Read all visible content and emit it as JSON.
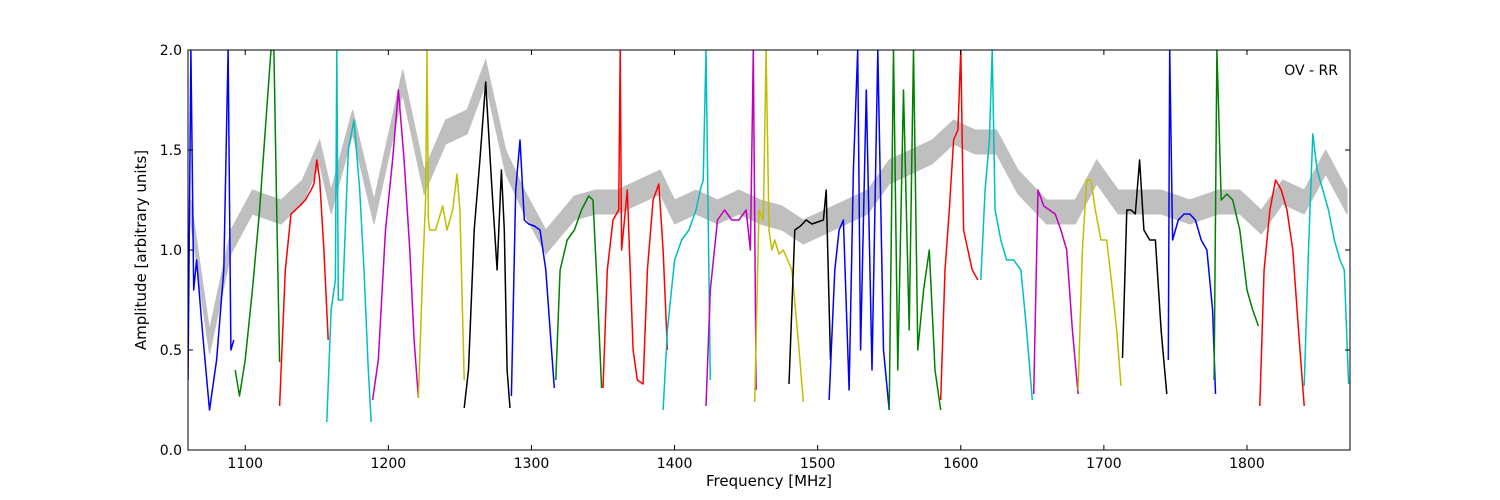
{
  "chart_data": {
    "type": "line",
    "annotation": "OV - RR",
    "xlabel": "Frequency [MHz]",
    "ylabel": "Amplitude [arbitrary units]",
    "xlim": [
      1060,
      1872
    ],
    "ylim": [
      0,
      2.0
    ],
    "x_ticks": [
      1100,
      1200,
      1300,
      1400,
      1500,
      1600,
      1700,
      1800
    ],
    "y_ticks": [
      0.0,
      0.5,
      1.0,
      1.5,
      2.0
    ],
    "x_tick_labels": [
      "1100",
      "1200",
      "1300",
      "1400",
      "1500",
      "1600",
      "1700",
      "1800"
    ],
    "y_tick_labels": [
      "0.0",
      "0.5",
      "1.0",
      "1.5",
      "2.0"
    ],
    "grid": false,
    "legend": "none",
    "colors": {
      "envelope": "#bfbfbf",
      "blue": "#0000ff",
      "green": "#008000",
      "red": "#ff0000",
      "cyan": "#00bfbf",
      "magenta": "#bf00bf",
      "yellow": "#bfbf00",
      "black": "#000000"
    },
    "envelope": {
      "x": [
        1062,
        1075,
        1090,
        1105,
        1125,
        1140,
        1152,
        1160,
        1175,
        1190,
        1210,
        1225,
        1240,
        1255,
        1268,
        1282,
        1295,
        1310,
        1330,
        1345,
        1360,
        1375,
        1390,
        1400,
        1415,
        1430,
        1445,
        1460,
        1475,
        1490,
        1505,
        1520,
        1535,
        1550,
        1565,
        1580,
        1595,
        1610,
        1625,
        1640,
        1660,
        1680,
        1695,
        1710,
        1725,
        1740,
        1760,
        1780,
        1795,
        1810,
        1825,
        1840,
        1855,
        1870
      ],
      "y": [
        1.25,
        0.6,
        1.1,
        1.3,
        1.25,
        1.35,
        1.55,
        1.3,
        1.7,
        1.25,
        1.9,
        1.4,
        1.65,
        1.7,
        1.95,
        1.5,
        1.3,
        1.1,
        1.27,
        1.3,
        1.3,
        1.35,
        1.4,
        1.25,
        1.3,
        1.25,
        1.3,
        1.25,
        1.22,
        1.15,
        1.2,
        1.25,
        1.3,
        1.45,
        1.5,
        1.55,
        1.65,
        1.6,
        1.6,
        1.4,
        1.25,
        1.25,
        1.45,
        1.3,
        1.3,
        1.3,
        1.25,
        1.3,
        1.3,
        1.2,
        1.35,
        1.3,
        1.5,
        1.3
      ]
    },
    "series": [
      {
        "color": "blue",
        "x": [
          1060,
          1062,
          1064,
          1066,
          1070,
          1075,
          1080,
          1085,
          1088,
          1090,
          1092
        ],
        "y": [
          0.35,
          2.0,
          0.8,
          0.95,
          0.6,
          0.2,
          0.45,
          0.9,
          2.0,
          0.5,
          0.55
        ]
      },
      {
        "color": "green",
        "x": [
          1093,
          1096,
          1100,
          1105,
          1110,
          1115,
          1118,
          1120,
          1122,
          1124
        ],
        "y": [
          0.4,
          0.27,
          0.45,
          0.8,
          1.2,
          1.7,
          2.0,
          2.0,
          1.2,
          0.44
        ]
      },
      {
        "color": "red",
        "x": [
          1124,
          1128,
          1132,
          1138,
          1142,
          1146,
          1148,
          1150,
          1152,
          1155,
          1158
        ],
        "y": [
          0.22,
          0.9,
          1.18,
          1.22,
          1.25,
          1.3,
          1.33,
          1.45,
          1.35,
          1.0,
          0.55
        ]
      },
      {
        "color": "cyan",
        "x": [
          1157,
          1160,
          1163,
          1164,
          1165,
          1168,
          1172,
          1176,
          1180,
          1183,
          1186,
          1188
        ],
        "y": [
          0.14,
          0.7,
          0.85,
          2.0,
          0.75,
          0.75,
          1.5,
          1.65,
          1.3,
          0.9,
          0.4,
          0.14
        ]
      },
      {
        "color": "magenta",
        "x": [
          1189,
          1193,
          1198,
          1203,
          1207,
          1211,
          1215,
          1218,
          1221
        ],
        "y": [
          0.25,
          0.45,
          1.1,
          1.45,
          1.8,
          1.45,
          1.0,
          0.55,
          0.26
        ]
      },
      {
        "color": "yellow",
        "x": [
          1221,
          1224,
          1226,
          1227,
          1228,
          1229,
          1233,
          1238,
          1241,
          1245,
          1248,
          1250,
          1253
        ],
        "y": [
          0.26,
          0.9,
          1.25,
          2.0,
          1.15,
          1.1,
          1.1,
          1.22,
          1.1,
          1.2,
          1.38,
          1.2,
          0.35
        ]
      },
      {
        "color": "black",
        "x": [
          1253,
          1256,
          1260,
          1264,
          1268,
          1272,
          1276,
          1279,
          1281,
          1283,
          1285
        ],
        "y": [
          0.21,
          0.4,
          1.1,
          1.45,
          1.84,
          1.35,
          0.9,
          1.4,
          1.1,
          0.4,
          0.21
        ]
      },
      {
        "color": "blue",
        "x": [
          1286,
          1289,
          1292,
          1295,
          1298,
          1302,
          1306,
          1310,
          1313,
          1316
        ],
        "y": [
          0.27,
          1.3,
          1.55,
          1.15,
          1.13,
          1.12,
          1.1,
          0.9,
          0.6,
          0.31
        ]
      },
      {
        "color": "green",
        "x": [
          1317,
          1320,
          1325,
          1330,
          1335,
          1340,
          1343,
          1346,
          1349
        ],
        "y": [
          0.35,
          0.9,
          1.05,
          1.1,
          1.2,
          1.27,
          1.25,
          0.8,
          0.31
        ]
      },
      {
        "color": "red",
        "x": [
          1350,
          1353,
          1357,
          1361,
          1362,
          1363,
          1367,
          1371,
          1374,
          1378,
          1381,
          1385,
          1389,
          1392,
          1395
        ],
        "y": [
          0.31,
          0.9,
          1.15,
          1.2,
          2.0,
          1.0,
          1.3,
          0.5,
          0.35,
          0.33,
          0.9,
          1.25,
          1.33,
          1.0,
          0.5
        ]
      },
      {
        "color": "cyan",
        "x": [
          1392,
          1395,
          1400,
          1405,
          1410,
          1415,
          1418,
          1420,
          1422,
          1425
        ],
        "y": [
          0.2,
          0.6,
          0.95,
          1.05,
          1.1,
          1.2,
          1.3,
          1.35,
          2.0,
          0.35
        ]
      },
      {
        "color": "magenta",
        "x": [
          1422,
          1425,
          1430,
          1435,
          1440,
          1445,
          1450,
          1453,
          1455,
          1457
        ],
        "y": [
          0.22,
          0.8,
          1.15,
          1.2,
          1.15,
          1.15,
          1.2,
          1.0,
          2.0,
          0.3
        ]
      },
      {
        "color": "yellow",
        "x": [
          1456,
          1459,
          1462,
          1464,
          1466,
          1468,
          1470,
          1473,
          1476,
          1479,
          1482,
          1487,
          1490
        ],
        "y": [
          0.24,
          1.2,
          1.15,
          2.0,
          1.1,
          1.0,
          1.05,
          0.98,
          1.0,
          0.95,
          0.9,
          0.5,
          0.24
        ]
      },
      {
        "color": "black",
        "x": [
          1480,
          1484,
          1488,
          1492,
          1496,
          1500,
          1504,
          1506,
          1509
        ],
        "y": [
          0.33,
          1.1,
          1.12,
          1.15,
          1.13,
          1.14,
          1.15,
          1.3,
          0.45
        ]
      },
      {
        "color": "blue",
        "x": [
          1508,
          1512,
          1515,
          1518,
          1522,
          1525,
          1528,
          1530,
          1534,
          1538,
          1542,
          1546,
          1550
        ],
        "y": [
          0.25,
          0.9,
          1.1,
          1.15,
          0.3,
          1.4,
          2.0,
          0.5,
          1.8,
          0.4,
          2.0,
          0.5,
          0.2
        ]
      },
      {
        "color": "green",
        "x": [
          1550,
          1553,
          1556,
          1560,
          1564,
          1567,
          1570,
          1574,
          1578,
          1582,
          1586
        ],
        "y": [
          0.2,
          2.0,
          0.4,
          1.8,
          0.6,
          2.0,
          0.5,
          0.8,
          1.0,
          0.4,
          0.2
        ]
      },
      {
        "color": "red",
        "x": [
          1586,
          1589,
          1592,
          1595,
          1598,
          1600,
          1602,
          1605,
          1608,
          1612
        ],
        "y": [
          0.25,
          0.9,
          1.2,
          1.55,
          1.6,
          2.0,
          1.1,
          1.0,
          0.9,
          0.85
        ]
      },
      {
        "color": "cyan",
        "x": [
          1614,
          1617,
          1620,
          1622,
          1624,
          1628,
          1632,
          1637,
          1642,
          1646,
          1650
        ],
        "y": [
          0.85,
          1.3,
          1.55,
          2.0,
          1.2,
          1.05,
          0.95,
          0.95,
          0.9,
          0.6,
          0.25
        ]
      },
      {
        "color": "magenta",
        "x": [
          1651,
          1654,
          1658,
          1662,
          1666,
          1670,
          1674,
          1678,
          1682
        ],
        "y": [
          0.28,
          1.3,
          1.22,
          1.2,
          1.18,
          1.1,
          1.0,
          0.6,
          0.28
        ]
      },
      {
        "color": "yellow",
        "x": [
          1682,
          1685,
          1688,
          1691,
          1694,
          1698,
          1702,
          1706,
          1709,
          1712
        ],
        "y": [
          0.3,
          1.0,
          1.35,
          1.35,
          1.2,
          1.05,
          1.05,
          0.8,
          0.6,
          0.32
        ]
      },
      {
        "color": "black",
        "x": [
          1713,
          1716,
          1719,
          1722,
          1725,
          1728,
          1732,
          1736,
          1740,
          1744
        ],
        "y": [
          0.46,
          1.2,
          1.2,
          1.18,
          1.45,
          1.1,
          1.05,
          1.05,
          0.6,
          0.28
        ]
      },
      {
        "color": "blue",
        "x": [
          1745,
          1746,
          1748,
          1752,
          1756,
          1760,
          1764,
          1768,
          1772,
          1776,
          1778
        ],
        "y": [
          0.45,
          2.0,
          1.05,
          1.15,
          1.18,
          1.18,
          1.15,
          1.05,
          1.0,
          0.7,
          0.28
        ]
      },
      {
        "color": "green",
        "x": [
          1777,
          1779,
          1782,
          1786,
          1790,
          1795,
          1800,
          1804,
          1808
        ],
        "y": [
          0.35,
          2.0,
          1.25,
          1.28,
          1.25,
          1.1,
          0.8,
          0.7,
          0.62
        ]
      },
      {
        "color": "red",
        "x": [
          1809,
          1812,
          1816,
          1820,
          1824,
          1828,
          1832,
          1836,
          1840
        ],
        "y": [
          0.22,
          0.9,
          1.2,
          1.35,
          1.3,
          1.2,
          1.0,
          0.6,
          0.22
        ]
      },
      {
        "color": "cyan",
        "x": [
          1840,
          1843,
          1846,
          1849,
          1853,
          1857,
          1861,
          1865,
          1868,
          1871
        ],
        "y": [
          0.32,
          1.0,
          1.58,
          1.4,
          1.3,
          1.2,
          1.05,
          0.95,
          0.9,
          0.33
        ]
      }
    ]
  }
}
